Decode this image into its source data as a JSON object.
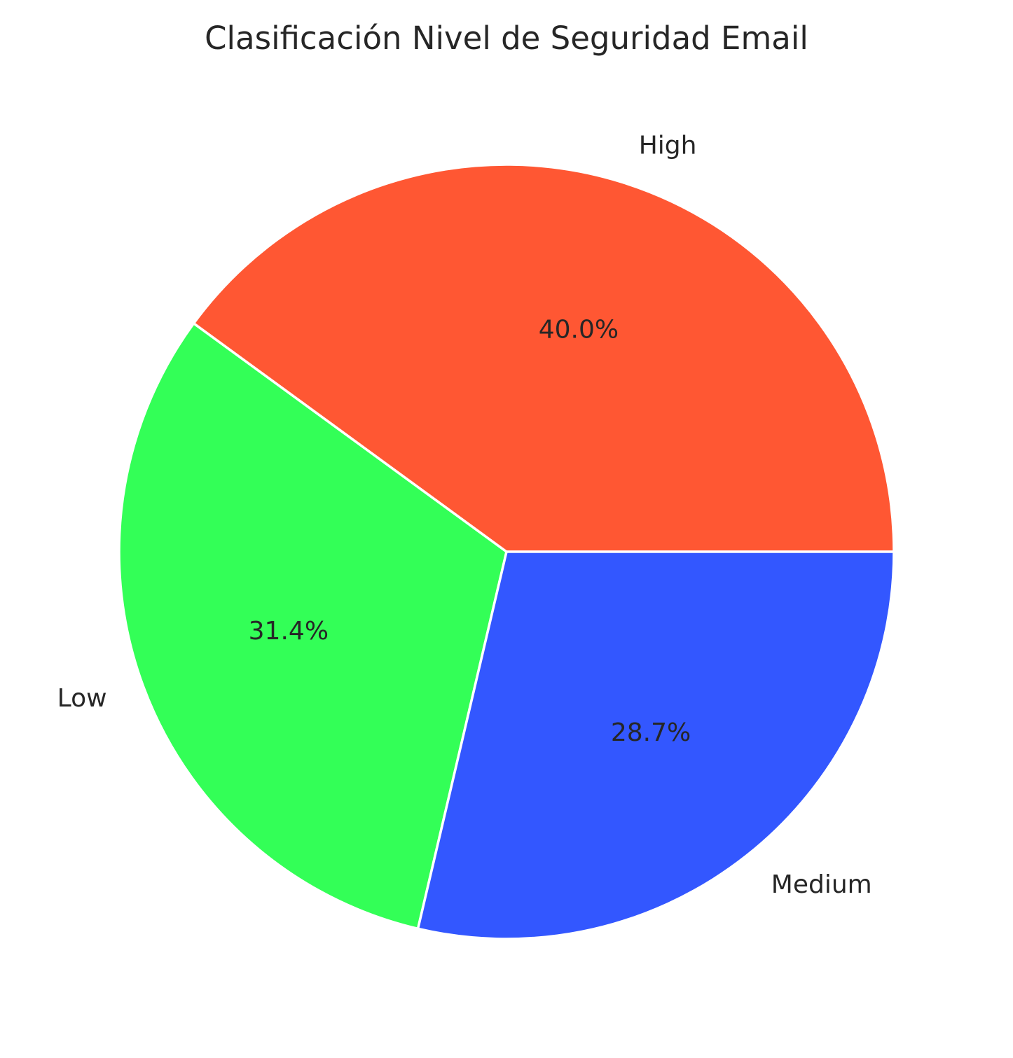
{
  "chart_data": {
    "type": "pie",
    "title": "Clasificación Nivel de Seguridad Email",
    "slices": [
      {
        "label": "High",
        "value": 40.0,
        "pct_label": "40.0%",
        "color": "#FF5733"
      },
      {
        "label": "Low",
        "value": 31.4,
        "pct_label": "31.4%",
        "color": "#33FF57"
      },
      {
        "label": "Medium",
        "value": 28.7,
        "pct_label": "28.7%",
        "color": "#3357FF"
      }
    ],
    "start_angle_deg": 0,
    "direction": "counterclockwise",
    "legend": "none"
  }
}
